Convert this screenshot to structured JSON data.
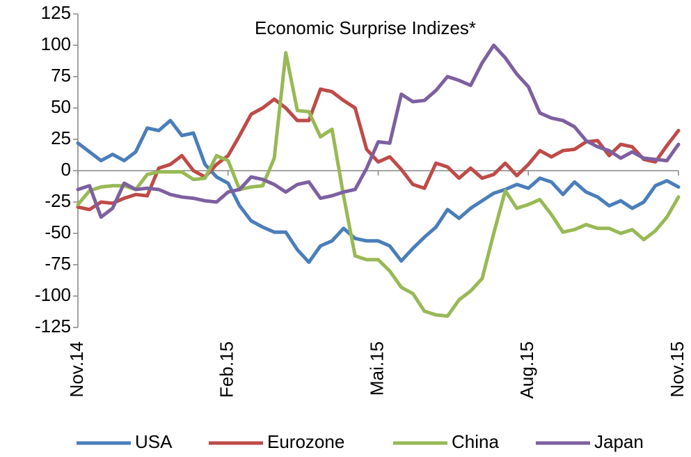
{
  "chart_data": {
    "type": "line",
    "title": "Economic Surprise Indizes*",
    "categories": [
      "Nov.14",
      null,
      null,
      null,
      null,
      null,
      null,
      null,
      null,
      null,
      null,
      null,
      null,
      "Feb.15",
      null,
      null,
      null,
      null,
      null,
      null,
      null,
      null,
      null,
      null,
      null,
      null,
      "Mai.15",
      null,
      null,
      null,
      null,
      null,
      null,
      null,
      null,
      null,
      null,
      null,
      null,
      "Aug.15",
      null,
      null,
      null,
      null,
      null,
      null,
      null,
      null,
      null,
      null,
      null,
      null,
      "Nov.15"
    ],
    "series": [
      {
        "name": "USA",
        "color": "#4a7ebb",
        "values": [
          22,
          15,
          8,
          13,
          8,
          15,
          34,
          32,
          40,
          28,
          30,
          5,
          -5,
          -10,
          -28,
          -40,
          -45,
          -49,
          -49,
          -63,
          -73,
          -60,
          -56,
          -46,
          -54,
          -56,
          -56,
          -60,
          -72,
          -62,
          -53,
          -45,
          -31,
          -38,
          -30,
          -24,
          -18,
          -15,
          -11,
          -14,
          -6,
          -9,
          -19,
          -9,
          -17,
          -21,
          -28,
          -24,
          -30,
          -25,
          -12,
          -8,
          -13
        ]
      },
      {
        "name": "Eurozone",
        "color": "#be4b48",
        "values": [
          -29,
          -31,
          -25,
          -26,
          -22,
          -19,
          -20,
          2,
          5,
          12,
          0,
          -5,
          5,
          12,
          28,
          45,
          50,
          57,
          50,
          40,
          40,
          65,
          63,
          56,
          50,
          17,
          7,
          11,
          1,
          -11,
          -14,
          6,
          3,
          -6,
          2,
          -6,
          -3,
          6,
          -4,
          5,
          16,
          11,
          16,
          17,
          23,
          24,
          12,
          21,
          19,
          9,
          7,
          20,
          32
        ]
      },
      {
        "name": "China",
        "color": "#98b954",
        "values": [
          -27,
          -16,
          -13,
          -12,
          -12,
          -15,
          -3,
          -1,
          -1,
          -1,
          -7,
          -6,
          12,
          8,
          -15,
          -13,
          -12,
          10,
          94,
          48,
          47,
          27,
          33,
          -20,
          -68,
          -71,
          -71,
          -80,
          -93,
          -98,
          -112,
          -115,
          -116,
          -103,
          -96,
          -86,
          -50,
          -16,
          -30,
          -27,
          -23,
          -35,
          -49,
          -47,
          -43,
          -46,
          -46,
          -50,
          -47,
          -55,
          -48,
          -37,
          -21
        ]
      },
      {
        "name": "Japan",
        "color": "#7d60a0",
        "values": [
          -15,
          -12,
          -37,
          -30,
          -10,
          -15,
          -14,
          -15,
          -19,
          -21,
          -22,
          -24,
          -25,
          -17,
          -15,
          -5,
          -7,
          -11,
          -17,
          -11,
          -9,
          -22,
          -20,
          -17,
          -15,
          2,
          23,
          22,
          61,
          55,
          56,
          64,
          75,
          72,
          68,
          86,
          100,
          90,
          77,
          67,
          46,
          42,
          40,
          35,
          24,
          19,
          16,
          10,
          15,
          10,
          9,
          8,
          21
        ]
      }
    ],
    "ylim": [
      -125,
      125
    ],
    "yticks": [
      -125,
      -100,
      -75,
      -50,
      -25,
      0,
      25,
      50,
      75,
      100,
      125
    ],
    "legend": "bottom"
  }
}
